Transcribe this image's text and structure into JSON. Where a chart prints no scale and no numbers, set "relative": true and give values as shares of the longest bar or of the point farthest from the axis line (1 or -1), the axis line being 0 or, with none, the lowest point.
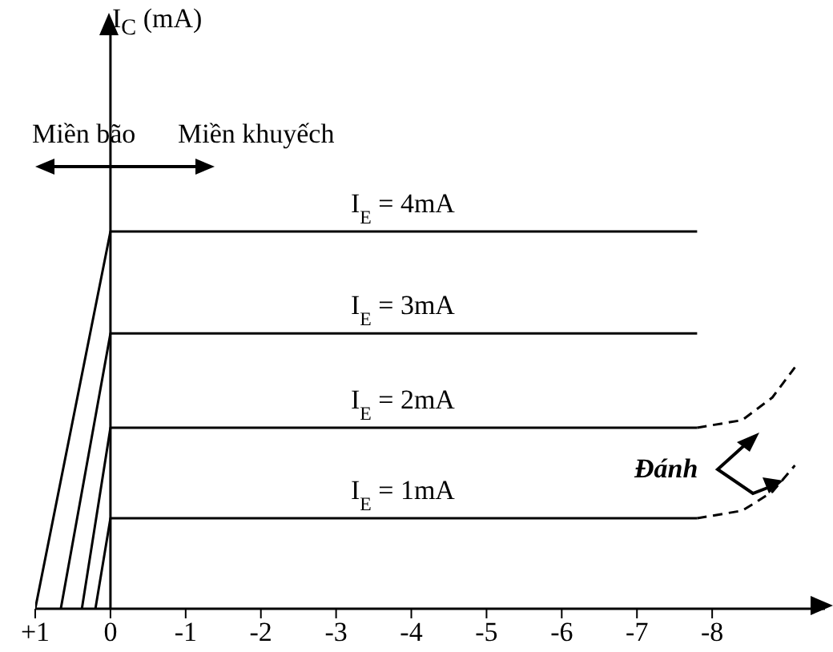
{
  "chart_data": {
    "type": "line",
    "relative": true,
    "xlim": [
      1,
      -9.5
    ],
    "xticks": [
      {
        "value": 1,
        "label": "+1"
      },
      0,
      -1,
      -2,
      -3,
      -4,
      -5,
      -6,
      -7,
      -8
    ],
    "marker": "none",
    "line_style": "solid",
    "ref_lines": [
      {
        "axis": "x",
        "value": 0,
        "color": "#000000"
      }
    ],
    "annotations": [
      "Miền bão",
      "Miền khuyếch",
      "Đánh",
      "I$_{C}$ (mA)"
    ],
    "series": [
      {
        "name": "I$_{E}$ = 4mA",
        "color": "#000000",
        "x": [
          1,
          0,
          -7.8
        ],
        "values": [
          0,
          1,
          1
        ]
      },
      {
        "name": "I$_{E}$ = 3mA",
        "color": "#000000",
        "x": [
          0.66,
          0,
          -7.8
        ],
        "values": [
          0,
          0.73,
          0.73
        ]
      },
      {
        "name": "I$_{E}$ = 2mA",
        "color": "#000000",
        "x": [
          0.38,
          0,
          -7.8
        ],
        "values": [
          0,
          0.48,
          0.48
        ]
      },
      {
        "name": "I$_{E}$ = 1mA",
        "color": "#000000",
        "x": [
          0.2,
          0,
          -7.8
        ],
        "values": [
          0,
          0.24,
          0.24
        ]
      },
      {
        "color": "#000000",
        "x": [
          -7.8,
          -8.4,
          -8.8,
          -9.1
        ],
        "values": [
          0.48,
          0.5,
          0.56,
          0.64
        ],
        "line_style": "dashed"
      },
      {
        "color": "#000000",
        "x": [
          -7.8,
          -8.4,
          -8.8,
          -9.1
        ],
        "values": [
          0.24,
          0.26,
          0.31,
          0.38
        ],
        "line_style": "dashed"
      }
    ]
  }
}
